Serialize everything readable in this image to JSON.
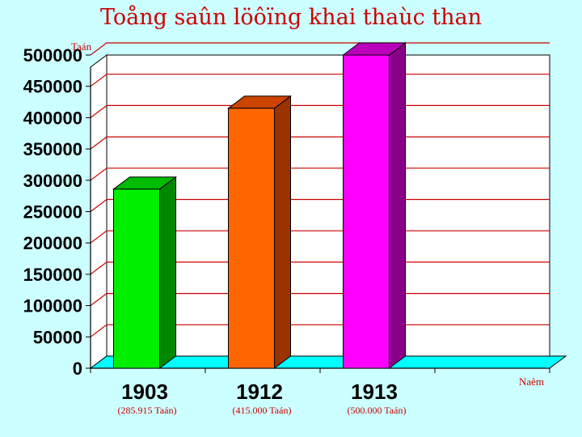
{
  "title": "Toång saûn löôïng khai thaùc than",
  "chart_data": {
    "type": "bar",
    "title": "Toång saûn löôïng khai thaùc than",
    "ylabel": "Taán",
    "xlabel": "Naêm",
    "categories": [
      "1903",
      "1912",
      "1913"
    ],
    "values": [
      285915,
      415000,
      500000
    ],
    "value_labels": [
      "(285.915 Taán)",
      "(415.000 Taán)",
      "(500.000 Taán)"
    ],
    "ylim": [
      0,
      500000
    ],
    "yticks": [
      "0",
      "50000",
      "100000",
      "150000",
      "200000",
      "250000",
      "300000",
      "350000",
      "400000",
      "450000",
      "500000"
    ],
    "grid": true,
    "colors": {
      "bars": [
        "#00ee00",
        "#ff6600",
        "#ff00ff"
      ],
      "bar_sides": [
        "#008800",
        "#993300",
        "#880088"
      ],
      "bar_tops": [
        "#00bb00",
        "#cc4400",
        "#bb00bb"
      ],
      "gridlines": "#cc0000",
      "floor": "#00ffff",
      "plot_background": "#ffffff",
      "label_color": "#cc0000"
    }
  }
}
